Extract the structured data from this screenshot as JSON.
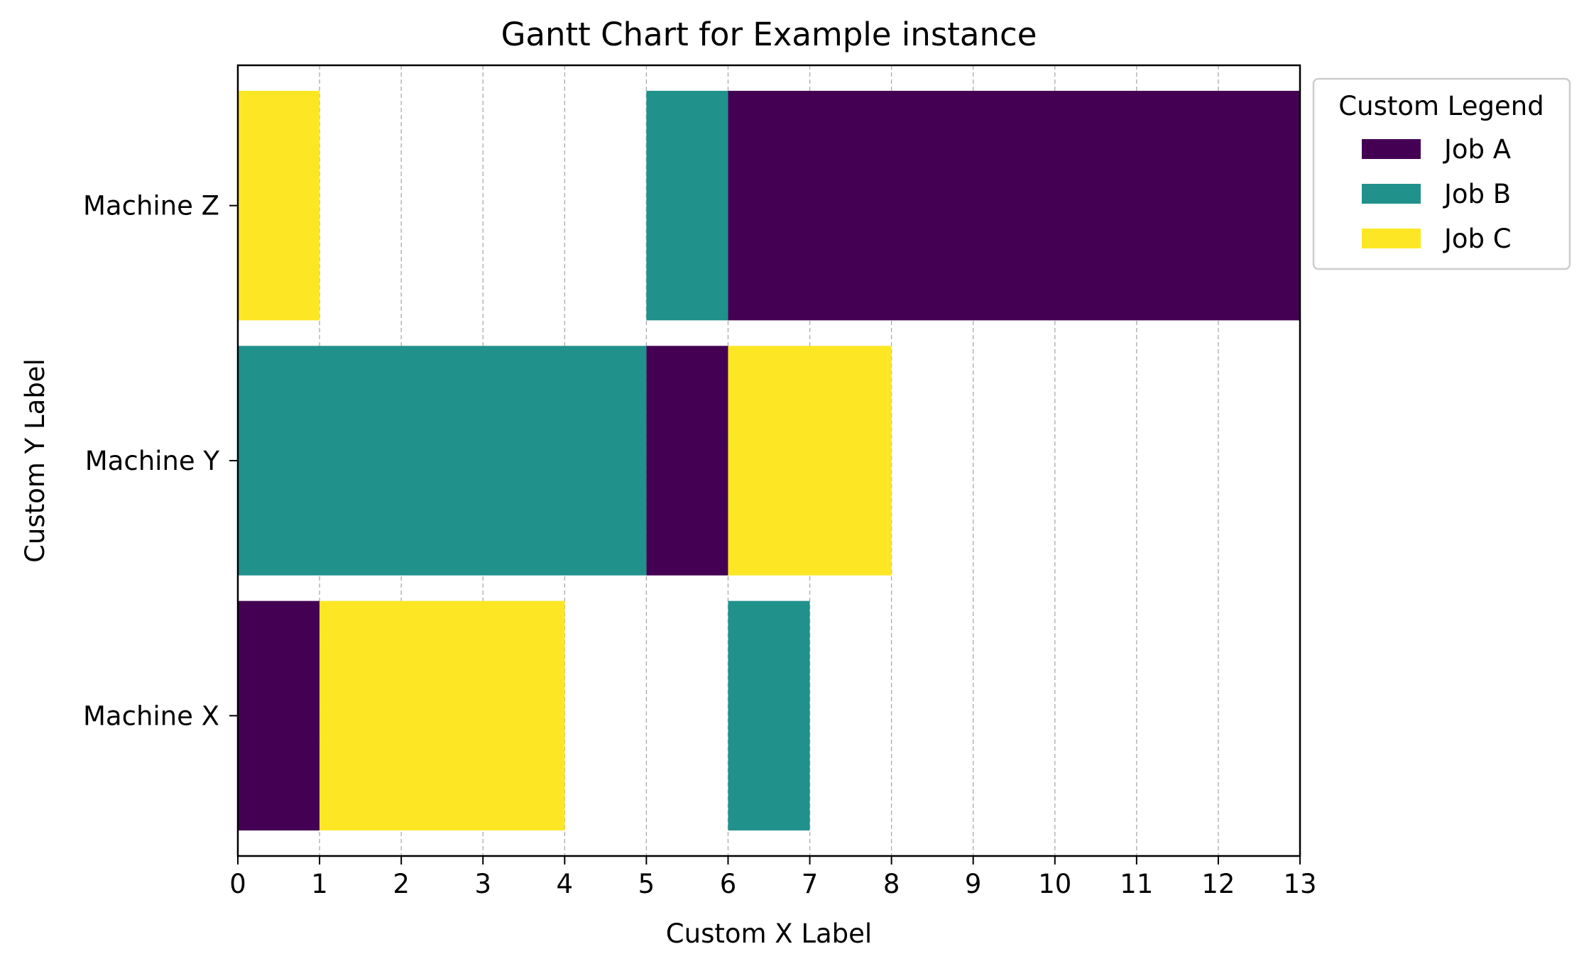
{
  "chart_data": {
    "type": "gantt",
    "title": "Gantt Chart for Example instance",
    "xlabel": "Custom X Label",
    "ylabel": "Custom Y Label",
    "xlim": [
      0,
      13
    ],
    "x_ticks": [
      0,
      1,
      2,
      3,
      4,
      5,
      6,
      7,
      8,
      9,
      10,
      11,
      12,
      13
    ],
    "grid": "vertical dashed",
    "categories": [
      "Machine X",
      "Machine Y",
      "Machine Z"
    ],
    "legend": {
      "title": "Custom Legend",
      "placement": "outside top-right",
      "entries": [
        "Job A",
        "Job B",
        "Job C"
      ]
    },
    "series": [
      {
        "name": "Job A",
        "color": "#440154",
        "tasks": [
          {
            "machine": "Machine X",
            "start": 0,
            "end": 1
          },
          {
            "machine": "Machine Y",
            "start": 5,
            "end": 6
          },
          {
            "machine": "Machine Z",
            "start": 6,
            "end": 13
          }
        ]
      },
      {
        "name": "Job B",
        "color": "#21918c",
        "tasks": [
          {
            "machine": "Machine X",
            "start": 6,
            "end": 7
          },
          {
            "machine": "Machine Y",
            "start": 0,
            "end": 5
          },
          {
            "machine": "Machine Z",
            "start": 5,
            "end": 6
          }
        ]
      },
      {
        "name": "Job C",
        "color": "#fde725",
        "tasks": [
          {
            "machine": "Machine X",
            "start": 1,
            "end": 4
          },
          {
            "machine": "Machine Y",
            "start": 6,
            "end": 8
          },
          {
            "machine": "Machine Z",
            "start": 0,
            "end": 1
          }
        ]
      }
    ]
  }
}
